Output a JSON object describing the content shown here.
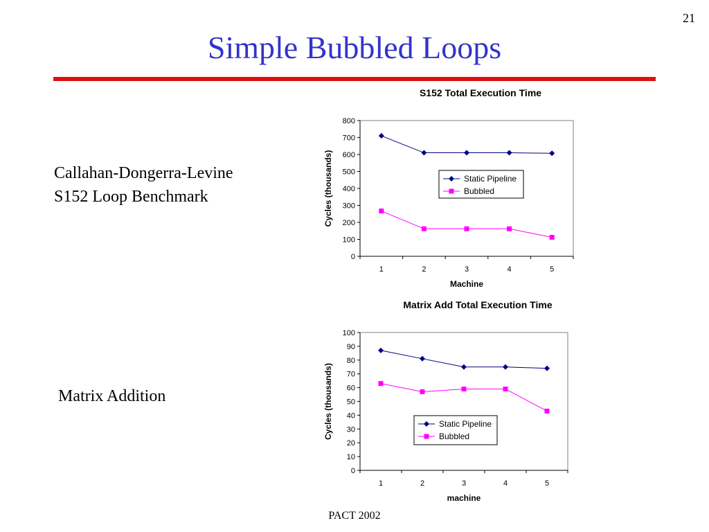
{
  "slide": {
    "number": "21",
    "title": "Simple Bubbled Loops",
    "footer": "PACT 2002",
    "text_blocks": {
      "benchmark_line1": "Callahan-Dongerra-Levine",
      "benchmark_line2": "S152 Loop Benchmark",
      "matrix": "Matrix Addition"
    }
  },
  "colors": {
    "title": "#3333cc",
    "rule": "#e01010",
    "static_pipeline": "#000080",
    "bubbled": "#ff00ff"
  },
  "chart_data": [
    {
      "type": "line",
      "title": "S152 Total Execution Time",
      "xlabel": "Machine",
      "ylabel": "Cycles (thousands)",
      "categories": [
        "1",
        "2",
        "3",
        "4",
        "5"
      ],
      "ylim": [
        0,
        800
      ],
      "yticks": [
        0,
        100,
        200,
        300,
        400,
        500,
        600,
        700,
        800
      ],
      "grid": false,
      "legend_position": "center-right",
      "series": [
        {
          "name": "Static Pipeline",
          "marker": "diamond",
          "values": [
            710,
            610,
            610,
            610,
            607
          ]
        },
        {
          "name": "Bubbled",
          "marker": "square",
          "values": [
            267,
            162,
            162,
            162,
            112
          ]
        }
      ]
    },
    {
      "type": "line",
      "title": "Matrix Add Total Execution  Time",
      "xlabel": "machine",
      "ylabel": "Cycles (thousands)",
      "categories": [
        "1",
        "2",
        "3",
        "4",
        "5"
      ],
      "ylim": [
        0,
        100
      ],
      "yticks": [
        0,
        10,
        20,
        30,
        40,
        50,
        60,
        70,
        80,
        90,
        100
      ],
      "grid": false,
      "legend_position": "bottom-center",
      "series": [
        {
          "name": "Static Pipeline",
          "marker": "diamond",
          "values": [
            87,
            81,
            75,
            75,
            74
          ]
        },
        {
          "name": "Bubbled",
          "marker": "square",
          "values": [
            63,
            57,
            59,
            59,
            43
          ]
        }
      ]
    }
  ]
}
